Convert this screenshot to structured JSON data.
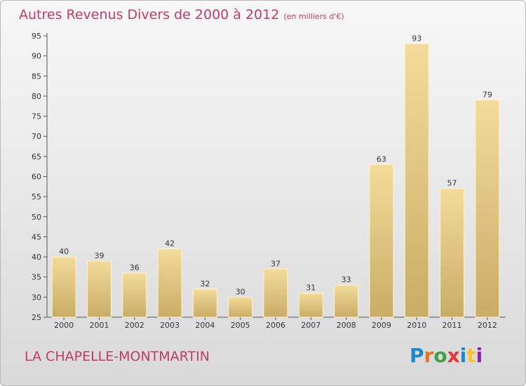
{
  "chart_data": {
    "type": "bar",
    "title": "Autres Revenus Divers de 2000 à 2012",
    "subtitle": "(en milliers d'€)",
    "categories": [
      "2000",
      "2001",
      "2002",
      "2003",
      "2004",
      "2005",
      "2006",
      "2007",
      "2008",
      "2009",
      "2010",
      "2011",
      "2012"
    ],
    "values": [
      40,
      39,
      36,
      42,
      32,
      30,
      37,
      31,
      33,
      63,
      93,
      57,
      79
    ],
    "xlabel": "",
    "ylabel": "",
    "ylim": [
      25,
      95
    ],
    "yticks": [
      25,
      30,
      35,
      40,
      45,
      50,
      55,
      60,
      65,
      70,
      75,
      80,
      85,
      90,
      95
    ],
    "grid": false,
    "bar_color_light": "#f3db9a",
    "bar_color_dark": "#c9ad66",
    "text_color": "#c23a6a"
  },
  "footer": {
    "location": "LA CHAPELLE-MONTMARTIN"
  },
  "logo": {
    "text": "Proxiti",
    "colors": [
      "#1e88c8",
      "#e8742a",
      "#43a047",
      "#e53935",
      "#1e88c8",
      "#fbc02d",
      "#8e24aa"
    ]
  }
}
